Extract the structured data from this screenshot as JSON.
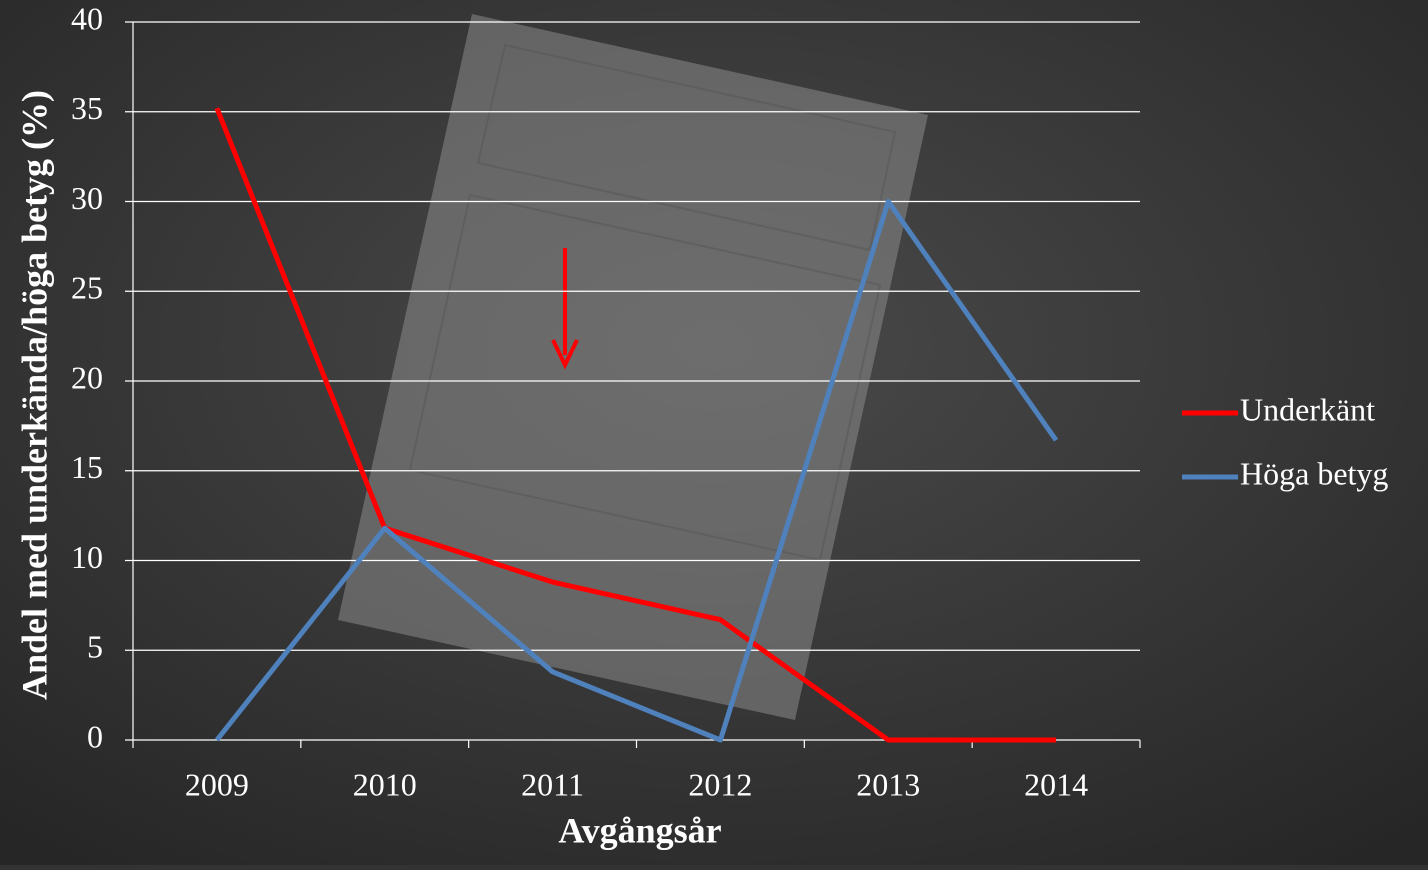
{
  "chart_data": {
    "type": "line",
    "x_label": "Avgångsår",
    "y_label": "Andel med underkända/höga betyg (%)",
    "categories": [
      "2009",
      "2010",
      "2011",
      "2012",
      "2013",
      "2014"
    ],
    "series": [
      {
        "name": "Underkänt",
        "color": "#ff0000",
        "values": [
          35.2,
          11.8,
          8.8,
          6.7,
          0,
          0
        ]
      },
      {
        "name": "Höga betyg",
        "color": "#4f81bd",
        "values": [
          0,
          11.8,
          3.8,
          0,
          30,
          16.7
        ]
      }
    ],
    "ylim": [
      0,
      40
    ],
    "yticks": [
      0,
      5,
      10,
      15,
      20,
      25,
      30,
      35,
      40
    ],
    "grid": true,
    "legend": "right"
  }
}
